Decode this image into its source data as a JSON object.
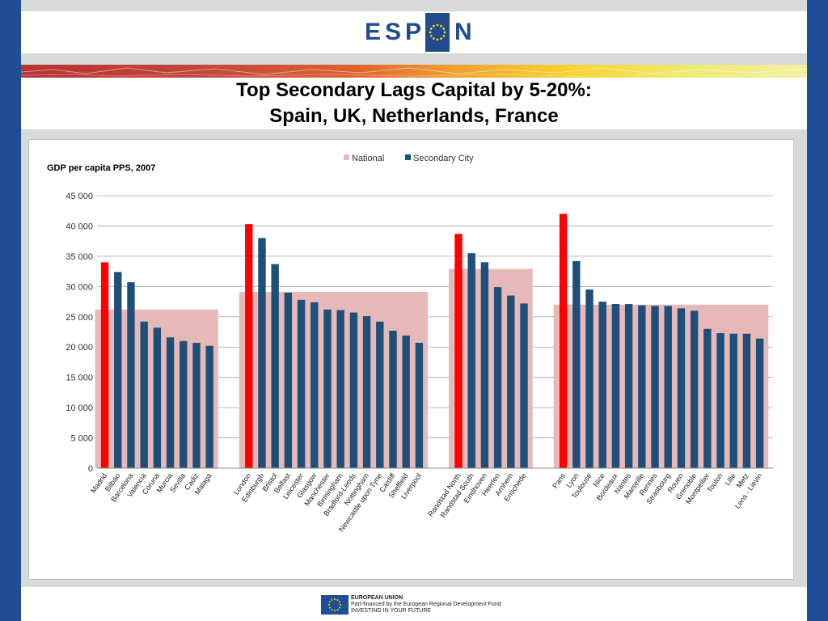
{
  "logo": {
    "text_left": "ESP",
    "text_right": "N"
  },
  "slide": {
    "title_line1": "Top Secondary Lags Capital by 5-20%:",
    "title_line2": "Spain, UK, Netherlands, France"
  },
  "colors": {
    "national": "#e6b9b8",
    "secondary": "#1f4e79",
    "capital": "#ff0000",
    "frame_blue": "#1f4e97"
  },
  "footer": {
    "line1": "EUROPEAN UNION",
    "line2": "Part-financed by the European Regional Development Fund",
    "line3": "INVESTING IN YOUR FUTURE"
  },
  "chart_data": {
    "type": "bar",
    "title": "GDP per capita PPS, 2007",
    "ylim": [
      0,
      45000
    ],
    "yticks": [
      0,
      5000,
      10000,
      15000,
      20000,
      25000,
      30000,
      35000,
      40000,
      45000
    ],
    "ytick_labels": [
      "0",
      "5 000",
      "10 000",
      "15 000",
      "20 000",
      "25 000",
      "30 000",
      "35 000",
      "40 000",
      "45 000"
    ],
    "grid": true,
    "legend": {
      "placement": "top",
      "entries": [
        "National",
        "Secondary City"
      ]
    },
    "groups": [
      {
        "national": 26200,
        "cities": [
          {
            "name": "Madrid",
            "value": 34000,
            "capital": true
          },
          {
            "name": "Bilbao",
            "value": 32400
          },
          {
            "name": "Barcelona",
            "value": 30700
          },
          {
            "name": "Valencia",
            "value": 24200
          },
          {
            "name": "Coruna",
            "value": 23200
          },
          {
            "name": "Murcia",
            "value": 21600
          },
          {
            "name": "Sevilla",
            "value": 21000
          },
          {
            "name": "Cadiz",
            "value": 20700
          },
          {
            "name": "Malaga",
            "value": 20200
          }
        ]
      },
      {
        "national": 29100,
        "cities": [
          {
            "name": "London",
            "value": 40300,
            "capital": true
          },
          {
            "name": "Edinburgh",
            "value": 38000
          },
          {
            "name": "Bristol",
            "value": 33700
          },
          {
            "name": "Belfast",
            "value": 29000
          },
          {
            "name": "Leicester",
            "value": 27800
          },
          {
            "name": "Glasgow",
            "value": 27400
          },
          {
            "name": "Manchester",
            "value": 26200
          },
          {
            "name": "Birmingham",
            "value": 26100
          },
          {
            "name": "Bradford-Leeds",
            "value": 25700
          },
          {
            "name": "Nottingham",
            "value": 25100
          },
          {
            "name": "Newcastle upon Tyne",
            "value": 24200
          },
          {
            "name": "Cardiff",
            "value": 22700
          },
          {
            "name": "Sheffield",
            "value": 21900
          },
          {
            "name": "Liverpool",
            "value": 20700
          }
        ]
      },
      {
        "national": 32900,
        "cities": [
          {
            "name": "Randstad North",
            "value": 38700,
            "capital": true
          },
          {
            "name": "Randstad South",
            "value": 35500
          },
          {
            "name": "Eindhoven",
            "value": 34000
          },
          {
            "name": "Heerlen",
            "value": 29900
          },
          {
            "name": "Arnhem",
            "value": 28500
          },
          {
            "name": "Enschede",
            "value": 27200
          }
        ]
      },
      {
        "national": 27000,
        "cities": [
          {
            "name": "Paris",
            "value": 42000,
            "capital": true
          },
          {
            "name": "Lyon",
            "value": 34200
          },
          {
            "name": "Toulouse",
            "value": 29500
          },
          {
            "name": "Nice",
            "value": 27500
          },
          {
            "name": "Bordeaux",
            "value": 27100
          },
          {
            "name": "Nantes",
            "value": 27100
          },
          {
            "name": "Marseille",
            "value": 26900
          },
          {
            "name": "Rennes",
            "value": 26800
          },
          {
            "name": "Strasbourg",
            "value": 26800
          },
          {
            "name": "Rouen",
            "value": 26400
          },
          {
            "name": "Grenoble",
            "value": 26000
          },
          {
            "name": "Montpellier",
            "value": 23000
          },
          {
            "name": "Toulon",
            "value": 22300
          },
          {
            "name": "Lille",
            "value": 22200
          },
          {
            "name": "Metz",
            "value": 22200
          },
          {
            "name": "Lens - Lievin",
            "value": 21400
          }
        ]
      }
    ]
  }
}
